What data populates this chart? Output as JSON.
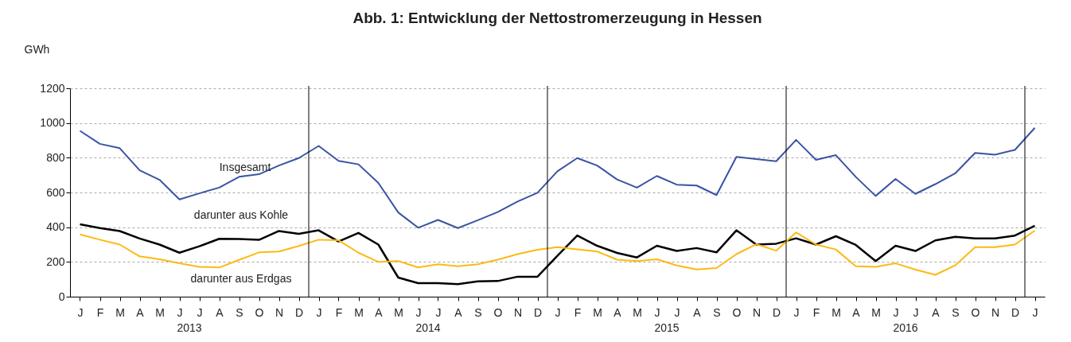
{
  "chart_data": {
    "type": "line",
    "title": "Abb. 1: Entwicklung der Nettostromerzeugung in Hessen",
    "ylabel": "GWh",
    "categories": [
      "J",
      "F",
      "M",
      "A",
      "M",
      "J",
      "J",
      "A",
      "S",
      "O",
      "N",
      "D",
      "J",
      "F",
      "M",
      "A",
      "M",
      "J",
      "J",
      "A",
      "S",
      "O",
      "N",
      "D",
      "J",
      "F",
      "M",
      "A",
      "M",
      "J",
      "J",
      "A",
      "S",
      "O",
      "N",
      "D",
      "J",
      "F",
      "M",
      "A",
      "M",
      "J",
      "J",
      "A",
      "S",
      "O",
      "N",
      "D",
      "J"
    ],
    "series": [
      {
        "name": "Insgesamt",
        "color": "#3953a4",
        "values": [
          955,
          880,
          855,
          728,
          673,
          560,
          595,
          628,
          690,
          705,
          755,
          798,
          868,
          782,
          762,
          655,
          485,
          397,
          442,
          395,
          440,
          487,
          548,
          598,
          722,
          798,
          755,
          675,
          628,
          695,
          645,
          640,
          585,
          805,
          792,
          780,
          903,
          788,
          815,
          690,
          580,
          678,
          592,
          648,
          710,
          828,
          818,
          845,
          972
        ]
      },
      {
        "name": "darunter aus Kohle",
        "color": "#000000",
        "values": [
          417,
          395,
          378,
          335,
          300,
          253,
          290,
          333,
          332,
          327,
          378,
          362,
          382,
          318,
          367,
          300,
          110,
          78,
          78,
          72,
          88,
          90,
          115,
          115,
          235,
          352,
          293,
          252,
          226,
          293,
          263,
          280,
          255,
          382,
          300,
          305,
          336,
          300,
          348,
          298,
          205,
          293,
          263,
          324,
          345,
          335,
          335,
          352,
          408
        ]
      },
      {
        "name": "darunter aus Erdgas",
        "color": "#fdb913",
        "values": [
          358,
          328,
          300,
          232,
          215,
          192,
          172,
          168,
          212,
          255,
          260,
          292,
          328,
          325,
          253,
          200,
          205,
          168,
          187,
          175,
          187,
          213,
          245,
          270,
          285,
          272,
          260,
          213,
          205,
          215,
          180,
          157,
          165,
          245,
          302,
          265,
          370,
          300,
          272,
          175,
          172,
          192,
          156,
          126,
          180,
          285,
          285,
          300,
          380
        ]
      }
    ],
    "ylim": [
      0,
      1200
    ],
    "yticks": [
      0,
      200,
      400,
      600,
      800,
      1000,
      1200
    ],
    "grid": "y",
    "legend": false,
    "marker": "none",
    "line_style": "solid",
    "annotations": [
      "2013",
      "2014",
      "2015",
      "2016"
    ]
  }
}
